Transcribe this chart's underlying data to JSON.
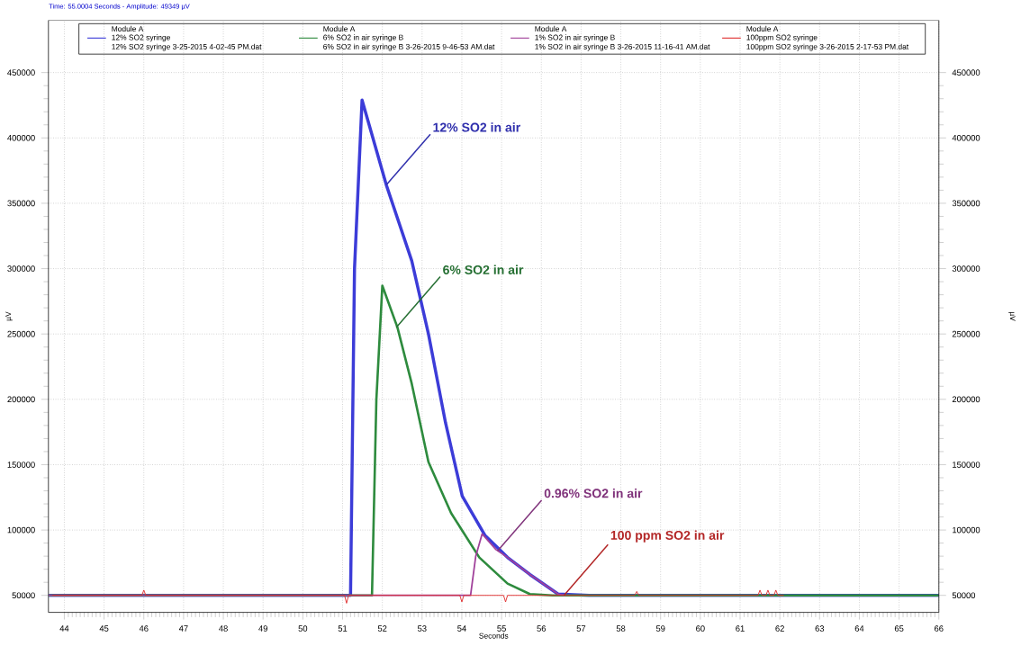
{
  "chart_data": {
    "type": "line",
    "xlabel": "Seconds",
    "ylabel": "µV",
    "y2label": "µV",
    "xlim": [
      43.6,
      66
    ],
    "ylim": [
      37000,
      490000
    ],
    "y2lim": [
      37000,
      490000
    ],
    "xticks": [
      44,
      45,
      46,
      47,
      48,
      49,
      50,
      51,
      52,
      53,
      54,
      55,
      56,
      57,
      58,
      59,
      60,
      61,
      62,
      63,
      64,
      65,
      66
    ],
    "yticks": [
      50000,
      100000,
      150000,
      200000,
      250000,
      300000,
      350000,
      400000,
      450000
    ],
    "y2ticks": [
      50000,
      100000,
      150000,
      200000,
      250000,
      300000,
      350000,
      400000,
      450000
    ],
    "grid": true,
    "legend": "top",
    "marker": "none",
    "line_style": "solid",
    "series": [
      {
        "name": "12% SO2 syringe",
        "color": "#3c3cd8",
        "x": [
          43.6,
          51.2,
          51.3,
          51.49,
          52.1,
          52.74,
          53.16,
          53.59,
          54.01,
          54.58,
          55.15,
          55.71,
          56.42,
          57.2,
          66
        ],
        "values": [
          50000,
          50000,
          300000,
          429000,
          364000,
          306000,
          250000,
          182000,
          126000,
          96000,
          79000,
          66000,
          51000,
          50000,
          50000
        ]
      },
      {
        "name": "6% SO2 in air syringe B",
        "color": "#2e8b3e",
        "x": [
          43.6,
          51.74,
          51.85,
          52.0,
          52.38,
          52.74,
          53.16,
          53.73,
          54.44,
          55.15,
          55.71,
          56.28,
          66
        ],
        "values": [
          50000,
          50000,
          200000,
          287000,
          255000,
          212000,
          152000,
          113000,
          79000,
          59000,
          51000,
          50000,
          50000
        ]
      },
      {
        "name": "1% SO2 in air syringe B",
        "color": "#a0409a",
        "x": [
          43.6,
          54.22,
          54.35,
          54.51,
          54.86,
          55.15,
          55.71,
          56.42,
          56.6
        ],
        "values": [
          50000,
          50000,
          80000,
          97000,
          85000,
          79000,
          66000,
          51000,
          50000
        ]
      },
      {
        "name": "100ppm SO2 syringe",
        "color": "#e03030",
        "x": [
          43.7,
          45.95,
          46.0,
          46.05,
          51.05,
          51.1,
          51.15,
          53.95,
          54.0,
          54.05,
          55.05,
          55.1,
          55.15,
          58.35,
          58.4,
          58.45,
          61.45,
          61.5,
          61.55,
          61.65,
          61.7,
          61.75,
          61.85,
          61.9,
          61.95,
          62.1
        ],
        "values": [
          50000,
          50000,
          54000,
          50000,
          50000,
          44000,
          50000,
          50000,
          45000,
          50000,
          50000,
          45000,
          50000,
          50000,
          53000,
          50000,
          50000,
          54000,
          50000,
          50000,
          54000,
          50000,
          50000,
          54000,
          50000,
          50000
        ]
      }
    ],
    "annotations": [
      "Time: 55.0004 Seconds - Amplitude: 49349 µV",
      {
        "text": "12% SO2 in air",
        "x": 52.1,
        "y": 364000
      },
      {
        "text": "6% SO2 in air",
        "x": 52.35,
        "y": 255000
      },
      {
        "text": "0.96% SO2 in air",
        "x": 54.9,
        "y": 84000
      },
      {
        "text": "100 ppm SO2 in air",
        "x": 56.57,
        "y": 50000
      },
      "Module A",
      "Module A",
      "Module A",
      "Module A",
      "12% SO2 syringe 3-25-2015 4-02-45 PM.dat",
      "6% SO2 in air syringe B 3-26-2015 9-46-53 AM.dat",
      "1% SO2 in air syringe B 3-26-2015 11-16-41 AM.dat",
      "100ppm SO2 syringe  3-26-2015 2-17-53 PM.dat"
    ]
  }
}
